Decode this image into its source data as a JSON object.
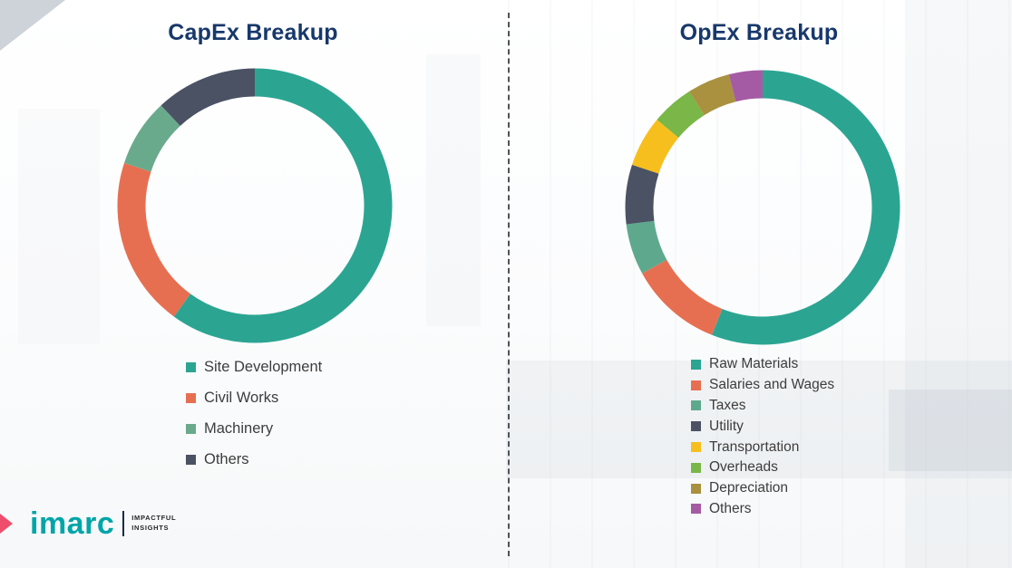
{
  "chart_data": [
    {
      "type": "pie",
      "subtype": "donut",
      "title": "CapEx Breakup",
      "categories": [
        "Site Development",
        "Civil Works",
        "Machinery",
        "Others"
      ],
      "values": [
        60,
        20,
        8,
        12
      ],
      "colors": [
        "#2ba592",
        "#e76f51",
        "#6aaa8c",
        "#4a5264"
      ],
      "legend_position": "bottom-left",
      "data_labels": false
    },
    {
      "type": "pie",
      "subtype": "donut",
      "title": "OpEx Breakup",
      "categories": [
        "Raw Materials",
        "Salaries and Wages",
        "Taxes",
        "Utility",
        "Transportation",
        "Overheads",
        "Depreciation",
        "Others"
      ],
      "values": [
        56,
        11,
        6,
        7,
        6,
        5,
        5,
        4
      ],
      "colors": [
        "#2ba592",
        "#e76f51",
        "#5ea98e",
        "#4a5264",
        "#f7bf1e",
        "#7ab648",
        "#a9913f",
        "#a55ba4"
      ],
      "legend_position": "bottom-left",
      "data_labels": false
    }
  ],
  "divider": {
    "style": "vertical-dashed",
    "color": "#4f5358"
  },
  "logo": {
    "brand": "imarc",
    "brand_color": "#00a5a8",
    "accent_color": "#ee4d6b",
    "tagline": [
      "IMPACTFUL",
      "INSIGHTS"
    ]
  }
}
